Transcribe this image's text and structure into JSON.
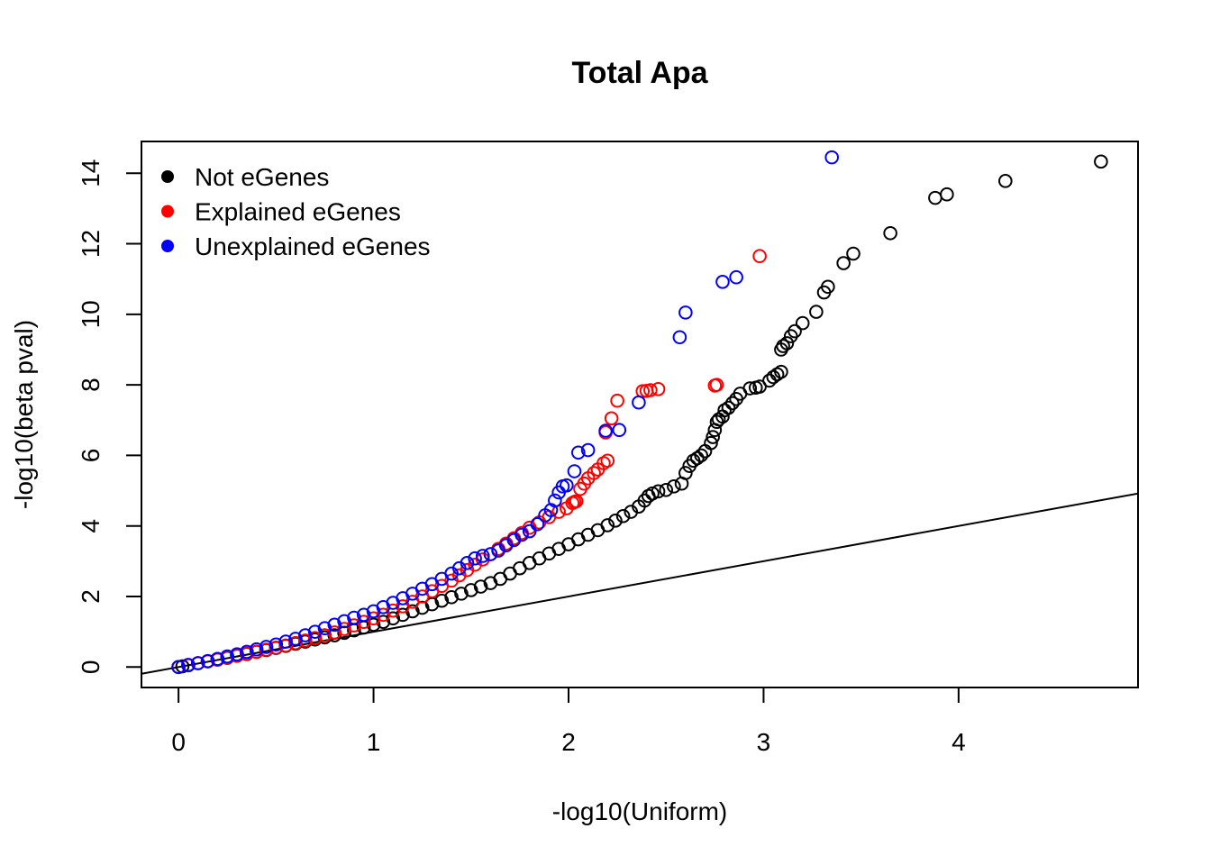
{
  "chart_data": {
    "type": "scatter",
    "title": "Total Apa",
    "xlabel": "-log10(Uniform)",
    "ylabel": "-log10(beta pval)",
    "xlim": [
      -0.19,
      4.92
    ],
    "ylim": [
      -0.58,
      14.9
    ],
    "x_ticks": [
      0,
      1,
      2,
      3,
      4
    ],
    "x_tick_labels": [
      "0",
      "1",
      "2",
      "3",
      "4"
    ],
    "y_ticks": [
      0,
      2,
      4,
      6,
      8,
      10,
      12,
      14
    ],
    "y_tick_labels": [
      "0",
      "2",
      "4",
      "6",
      "8",
      "10",
      "12",
      "14"
    ],
    "grid": false,
    "legend_position": "top-left",
    "reference_line": {
      "slope": 1,
      "intercept": 0,
      "color": "#000000"
    },
    "series": [
      {
        "name": "Not eGenes",
        "color": "#000000",
        "points": [
          [
            4.73,
            14.33
          ],
          [
            4.24,
            13.78
          ],
          [
            3.94,
            13.4
          ],
          [
            3.88,
            13.3
          ],
          [
            3.65,
            12.3
          ],
          [
            3.46,
            11.72
          ],
          [
            3.41,
            11.45
          ],
          [
            3.33,
            10.78
          ],
          [
            3.31,
            10.62
          ],
          [
            3.27,
            10.07
          ],
          [
            3.2,
            9.75
          ],
          [
            3.16,
            9.52
          ],
          [
            3.14,
            9.38
          ],
          [
            3.12,
            9.18
          ],
          [
            3.1,
            9.1
          ],
          [
            3.09,
            9.0
          ],
          [
            3.09,
            8.37
          ],
          [
            3.07,
            8.3
          ],
          [
            3.05,
            8.22
          ],
          [
            3.03,
            8.12
          ],
          [
            2.98,
            7.95
          ],
          [
            2.96,
            7.92
          ],
          [
            2.93,
            7.9
          ],
          [
            2.88,
            7.75
          ],
          [
            2.86,
            7.6
          ],
          [
            2.84,
            7.48
          ],
          [
            2.82,
            7.35
          ],
          [
            2.8,
            7.28
          ],
          [
            2.79,
            7.1
          ],
          [
            2.77,
            7.02
          ],
          [
            2.76,
            6.95
          ],
          [
            2.75,
            6.72
          ],
          [
            2.74,
            6.52
          ],
          [
            2.73,
            6.35
          ],
          [
            2.7,
            6.12
          ],
          [
            2.68,
            6.0
          ],
          [
            2.66,
            5.92
          ],
          [
            2.64,
            5.85
          ],
          [
            2.62,
            5.7
          ],
          [
            2.6,
            5.5
          ],
          [
            2.58,
            5.2
          ],
          [
            2.54,
            5.12
          ],
          [
            2.5,
            5.02
          ],
          [
            2.46,
            4.98
          ],
          [
            2.43,
            4.92
          ],
          [
            2.41,
            4.85
          ],
          [
            2.39,
            4.72
          ],
          [
            2.36,
            4.55
          ],
          [
            2.32,
            4.4
          ],
          [
            2.28,
            4.28
          ],
          [
            2.24,
            4.15
          ],
          [
            2.2,
            4.02
          ],
          [
            2.15,
            3.88
          ],
          [
            2.1,
            3.75
          ],
          [
            2.05,
            3.62
          ],
          [
            2.0,
            3.48
          ],
          [
            1.95,
            3.35
          ],
          [
            1.9,
            3.22
          ],
          [
            1.85,
            3.08
          ],
          [
            1.8,
            2.95
          ],
          [
            1.75,
            2.8
          ],
          [
            1.7,
            2.65
          ],
          [
            1.65,
            2.5
          ],
          [
            1.6,
            2.38
          ],
          [
            1.55,
            2.28
          ],
          [
            1.5,
            2.18
          ],
          [
            1.45,
            2.08
          ],
          [
            1.4,
            1.98
          ],
          [
            1.35,
            1.88
          ],
          [
            1.3,
            1.78
          ],
          [
            1.25,
            1.68
          ],
          [
            1.2,
            1.58
          ],
          [
            1.15,
            1.48
          ],
          [
            1.1,
            1.38
          ],
          [
            1.05,
            1.28
          ],
          [
            1.0,
            1.2
          ],
          [
            0.95,
            1.12
          ],
          [
            0.9,
            1.04
          ],
          [
            0.85,
            0.97
          ],
          [
            0.8,
            0.9
          ],
          [
            0.75,
            0.84
          ],
          [
            0.7,
            0.78
          ],
          [
            0.65,
            0.72
          ],
          [
            0.6,
            0.66
          ],
          [
            0.55,
            0.6
          ],
          [
            0.5,
            0.54
          ],
          [
            0.45,
            0.48
          ],
          [
            0.4,
            0.43
          ],
          [
            0.35,
            0.37
          ],
          [
            0.3,
            0.32
          ],
          [
            0.25,
            0.26
          ],
          [
            0.2,
            0.21
          ],
          [
            0.15,
            0.16
          ],
          [
            0.1,
            0.11
          ],
          [
            0.05,
            0.05
          ],
          [
            0.02,
            0.02
          ],
          [
            0.0,
            0.0
          ]
        ]
      },
      {
        "name": "Explained eGenes",
        "color": "#ff0000",
        "points": [
          [
            2.98,
            11.65
          ],
          [
            2.76,
            8.0
          ],
          [
            2.75,
            7.98
          ],
          [
            2.46,
            7.88
          ],
          [
            2.42,
            7.85
          ],
          [
            2.4,
            7.83
          ],
          [
            2.38,
            7.82
          ],
          [
            2.25,
            7.55
          ],
          [
            2.22,
            7.05
          ],
          [
            2.19,
            6.65
          ],
          [
            2.2,
            5.85
          ],
          [
            2.18,
            5.78
          ],
          [
            2.15,
            5.6
          ],
          [
            2.13,
            5.5
          ],
          [
            2.1,
            5.35
          ],
          [
            2.08,
            5.2
          ],
          [
            2.06,
            5.05
          ],
          [
            2.04,
            4.7
          ],
          [
            2.03,
            4.68
          ],
          [
            2.02,
            4.65
          ],
          [
            1.99,
            4.5
          ],
          [
            1.95,
            4.4
          ],
          [
            1.9,
            4.25
          ],
          [
            1.85,
            4.1
          ],
          [
            1.8,
            3.95
          ],
          [
            1.76,
            3.8
          ],
          [
            1.72,
            3.65
          ],
          [
            1.68,
            3.5
          ],
          [
            1.64,
            3.35
          ],
          [
            1.6,
            3.2
          ],
          [
            1.56,
            3.05
          ],
          [
            1.52,
            2.9
          ],
          [
            1.48,
            2.75
          ],
          [
            1.44,
            2.6
          ],
          [
            1.4,
            2.45
          ],
          [
            1.35,
            2.3
          ],
          [
            1.3,
            2.15
          ],
          [
            1.25,
            2.0
          ],
          [
            1.2,
            1.85
          ],
          [
            1.15,
            1.72
          ],
          [
            1.1,
            1.6
          ],
          [
            1.05,
            1.48
          ],
          [
            1.0,
            1.38
          ],
          [
            0.95,
            1.28
          ],
          [
            0.9,
            1.18
          ],
          [
            0.85,
            1.08
          ],
          [
            0.8,
            0.98
          ],
          [
            0.75,
            0.9
          ],
          [
            0.7,
            0.82
          ],
          [
            0.65,
            0.75
          ],
          [
            0.6,
            0.68
          ],
          [
            0.55,
            0.61
          ],
          [
            0.5,
            0.55
          ],
          [
            0.45,
            0.49
          ],
          [
            0.4,
            0.43
          ],
          [
            0.35,
            0.38
          ],
          [
            0.3,
            0.32
          ],
          [
            0.25,
            0.27
          ],
          [
            0.2,
            0.21
          ],
          [
            0.15,
            0.16
          ],
          [
            0.1,
            0.11
          ],
          [
            0.05,
            0.05
          ],
          [
            0.0,
            0.0
          ]
        ]
      },
      {
        "name": "Unexplained eGenes",
        "color": "#0000ff",
        "points": [
          [
            3.35,
            14.45
          ],
          [
            2.86,
            11.05
          ],
          [
            2.79,
            10.92
          ],
          [
            2.6,
            10.05
          ],
          [
            2.57,
            9.35
          ],
          [
            2.36,
            7.5
          ],
          [
            2.26,
            6.72
          ],
          [
            2.19,
            6.7
          ],
          [
            2.1,
            6.15
          ],
          [
            2.05,
            6.08
          ],
          [
            2.03,
            5.55
          ],
          [
            1.99,
            5.15
          ],
          [
            1.97,
            5.12
          ],
          [
            1.95,
            4.95
          ],
          [
            1.93,
            4.72
          ],
          [
            1.91,
            4.45
          ],
          [
            1.88,
            4.3
          ],
          [
            1.84,
            4.05
          ],
          [
            1.8,
            3.85
          ],
          [
            1.76,
            3.75
          ],
          [
            1.72,
            3.6
          ],
          [
            1.68,
            3.45
          ],
          [
            1.64,
            3.3
          ],
          [
            1.6,
            3.2
          ],
          [
            1.56,
            3.15
          ],
          [
            1.52,
            3.08
          ],
          [
            1.48,
            2.95
          ],
          [
            1.44,
            2.8
          ],
          [
            1.4,
            2.65
          ],
          [
            1.35,
            2.5
          ],
          [
            1.3,
            2.35
          ],
          [
            1.25,
            2.22
          ],
          [
            1.2,
            2.08
          ],
          [
            1.15,
            1.95
          ],
          [
            1.1,
            1.82
          ],
          [
            1.05,
            1.7
          ],
          [
            1.0,
            1.58
          ],
          [
            0.95,
            1.48
          ],
          [
            0.9,
            1.4
          ],
          [
            0.85,
            1.3
          ],
          [
            0.8,
            1.2
          ],
          [
            0.75,
            1.1
          ],
          [
            0.7,
            1.0
          ],
          [
            0.65,
            0.9
          ],
          [
            0.6,
            0.8
          ],
          [
            0.55,
            0.72
          ],
          [
            0.5,
            0.64
          ],
          [
            0.45,
            0.57
          ],
          [
            0.4,
            0.5
          ],
          [
            0.35,
            0.43
          ],
          [
            0.3,
            0.36
          ],
          [
            0.25,
            0.3
          ],
          [
            0.2,
            0.23
          ],
          [
            0.15,
            0.17
          ],
          [
            0.1,
            0.11
          ],
          [
            0.05,
            0.06
          ],
          [
            0.0,
            0.0
          ]
        ]
      }
    ]
  }
}
